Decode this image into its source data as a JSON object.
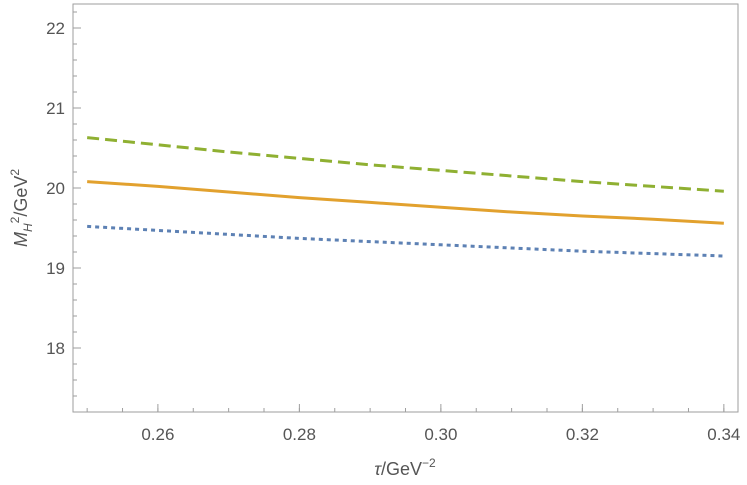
{
  "chart_data": {
    "type": "line",
    "xlabel": "τ/GeV⁻²",
    "ylabel": "M_H²/GeV²",
    "xlim": [
      0.248,
      0.342
    ],
    "ylim": [
      17.2,
      22.3
    ],
    "x_ticks": [
      {
        "value": 0.26,
        "label": "0.26"
      },
      {
        "value": 0.28,
        "label": "0.28"
      },
      {
        "value": 0.3,
        "label": "0.30"
      },
      {
        "value": 0.32,
        "label": "0.32"
      },
      {
        "value": 0.34,
        "label": "0.34"
      }
    ],
    "y_ticks": [
      {
        "value": 18,
        "label": "18"
      },
      {
        "value": 19,
        "label": "19"
      },
      {
        "value": 20,
        "label": "20"
      },
      {
        "value": 21,
        "label": "21"
      },
      {
        "value": 22,
        "label": "22"
      }
    ],
    "x_minor_step": 0.005,
    "y_minor_step": 0.2,
    "grid": false,
    "x": [
      0.25,
      0.26,
      0.27,
      0.28,
      0.29,
      0.3,
      0.31,
      0.32,
      0.33,
      0.34
    ],
    "series": [
      {
        "style": "dashed",
        "color": "#8fb032",
        "values": [
          20.63,
          20.54,
          20.45,
          20.37,
          20.29,
          20.22,
          20.15,
          20.08,
          20.02,
          19.96
        ]
      },
      {
        "style": "solid",
        "color": "#e2a12e",
        "values": [
          20.08,
          20.02,
          19.95,
          19.88,
          19.82,
          19.76,
          19.7,
          19.65,
          19.61,
          19.56
        ]
      },
      {
        "style": "dotted",
        "color": "#5d81b4",
        "values": [
          19.52,
          19.47,
          19.42,
          19.37,
          19.33,
          19.29,
          19.25,
          19.21,
          19.18,
          19.15
        ]
      }
    ]
  },
  "colors": {
    "axis": "#9e9e9e",
    "tick_text": "#555555",
    "background": "#ffffff"
  }
}
